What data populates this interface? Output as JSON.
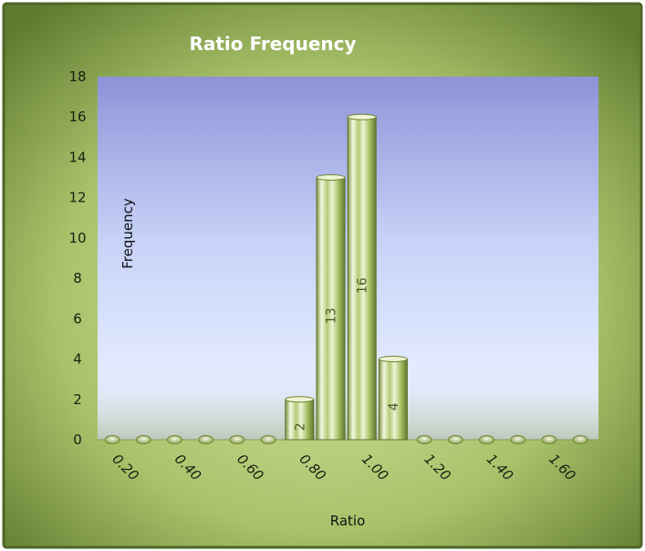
{
  "chart_data": {
    "type": "bar",
    "title": "Ratio Frequency",
    "xlabel": "Ratio",
    "ylabel": "Frequency",
    "ylim": [
      0,
      18
    ],
    "yticks": [
      "0",
      "2",
      "4",
      "6",
      "8",
      "10",
      "12",
      "14",
      "16",
      "18"
    ],
    "xtick_labels": [
      "0.20",
      "0.40",
      "0.60",
      "0.80",
      "1.00",
      "1.20",
      "1.40",
      "1.60"
    ],
    "categories": [
      "0.15",
      "0.25",
      "0.35",
      "0.45",
      "0.55",
      "0.65",
      "0.75",
      "0.85",
      "0.95",
      "1.05",
      "1.15",
      "1.25",
      "1.35",
      "1.45",
      "1.55",
      "1.65"
    ],
    "values": [
      0,
      0,
      0,
      0,
      0,
      0,
      2,
      13,
      16,
      4,
      0,
      0,
      0,
      0,
      0,
      0
    ],
    "data_labels": [
      "",
      "",
      "",
      "",
      "",
      "",
      "2",
      "13",
      "16",
      "4",
      "",
      "",
      "",
      "",
      "",
      ""
    ],
    "grid": false,
    "legend": "none",
    "colors": {
      "frame_outer": "#5f7a2f",
      "frame_inner": "#c9dc92",
      "plot_top": "#8f92d8",
      "plot_bottom": "#dfe8ff",
      "bar_light": "#f2f7dc",
      "bar_mid": "#b9cc7a",
      "bar_dark": "#6e8535"
    }
  }
}
